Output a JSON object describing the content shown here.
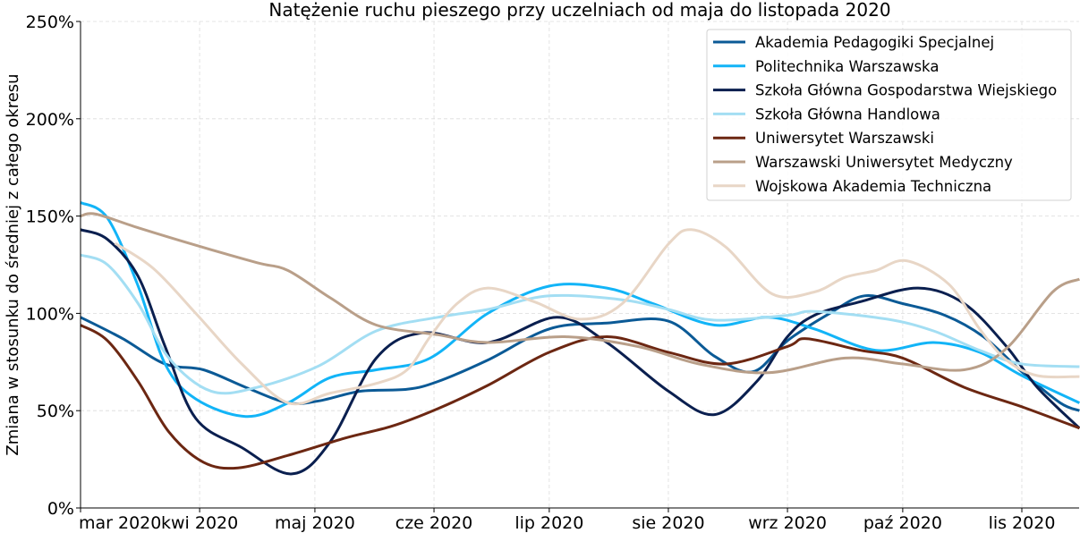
{
  "chart_data": {
    "type": "line",
    "title": "Natężenie ruchu pieszego przy uczelniach od maja do listopada 2020",
    "xlabel": "",
    "ylabel": "Zmiana w stosunku do średniej z całego okresu",
    "x_unit": "days since 2020-03-01",
    "xlim": [
      0,
      260
    ],
    "ylim": [
      0,
      250
    ],
    "grid": true,
    "legend_position": "top-right",
    "x_ticks": [
      {
        "value": 0,
        "label": "mar 2020"
      },
      {
        "value": 31,
        "label": "kwi 2020"
      },
      {
        "value": 61,
        "label": "maj 2020"
      },
      {
        "value": 92,
        "label": "cze 2020"
      },
      {
        "value": 122,
        "label": "lip 2020"
      },
      {
        "value": 153,
        "label": "sie 2020"
      },
      {
        "value": 184,
        "label": "wrz 2020"
      },
      {
        "value": 214,
        "label": "paź 2020"
      },
      {
        "value": 245,
        "label": "lis 2020"
      }
    ],
    "y_ticks": [
      {
        "value": 0,
        "label": "0%"
      },
      {
        "value": 50,
        "label": "50%"
      },
      {
        "value": 100,
        "label": "100%"
      },
      {
        "value": 150,
        "label": "150%"
      },
      {
        "value": 200,
        "label": "200%"
      },
      {
        "value": 250,
        "label": "250%"
      }
    ],
    "series": [
      {
        "name": "Akademia Pedagogiki Specjalnej",
        "color": "#0b5a96",
        "x": [
          0,
          11,
          22,
          32,
          43,
          54,
          62,
          73,
          85,
          93,
          106,
          122,
          137,
          153,
          165,
          175,
          184,
          195,
          204,
          214,
          225,
          235,
          245,
          255,
          260
        ],
        "y": [
          98,
          87,
          74,
          71,
          62,
          54,
          55,
          60,
          61,
          65,
          76,
          92,
          95,
          96,
          78,
          70,
          86,
          100,
          109,
          105,
          99,
          88,
          70,
          54,
          50
        ]
      },
      {
        "name": "Politechnika Warszawska",
        "color": "#12b4f7",
        "x": [
          0,
          7,
          15,
          22,
          30,
          43,
          54,
          65,
          77,
          91,
          106,
          122,
          137,
          149,
          165,
          179,
          191,
          207,
          222,
          234,
          245,
          260
        ],
        "y": [
          157,
          149,
          114,
          74,
          56,
          47,
          54,
          67,
          71,
          77,
          100,
          114,
          113,
          105,
          94,
          98,
          92,
          81,
          85,
          80,
          68,
          54
        ]
      },
      {
        "name": "Szkoła Główna Gospodarstwa Wiejskiego",
        "color": "#0a1f4f",
        "x": [
          0,
          7,
          15,
          22,
          30,
          42,
          55,
          65,
          77,
          89,
          106,
          124,
          137,
          153,
          165,
          176,
          184,
          191,
          203,
          218,
          230,
          241,
          249,
          260
        ],
        "y": [
          143,
          138,
          119,
          83,
          46,
          31,
          17.5,
          34,
          77,
          90,
          85,
          98,
          85,
          60,
          48,
          65,
          88,
          99,
          106,
          113,
          105,
          83,
          62,
          41
        ]
      },
      {
        "name": "Szkoła Główna Handlowa",
        "color": "#a3def3",
        "x": [
          0,
          7,
          15,
          23,
          34,
          46,
          62,
          77,
          93,
          106,
          122,
          141,
          153,
          165,
          184,
          191,
          210,
          222,
          234,
          245,
          260
        ],
        "y": [
          130,
          125,
          105,
          77,
          60,
          62,
          73,
          91,
          98,
          102,
          109,
          107,
          102,
          96.5,
          99,
          101,
          97,
          91,
          81,
          74,
          72.6
        ]
      },
      {
        "name": "Uniwersytet Warszawski",
        "color": "#6c2712",
        "x": [
          0,
          7,
          15,
          23,
          32,
          41,
          54,
          69,
          81,
          93,
          106,
          122,
          137,
          153,
          168,
          184,
          189,
          203,
          214,
          230,
          245,
          260
        ],
        "y": [
          94,
          86,
          65,
          39,
          23.5,
          20.6,
          27,
          36,
          42,
          51,
          63,
          80,
          88,
          80,
          74,
          83,
          87,
          81,
          77,
          62,
          52,
          41
        ]
      },
      {
        "name": "Warszawski Uniwersytet Medyczny",
        "color": "#b99f89",
        "x": [
          0,
          4,
          15,
          30,
          46,
          54,
          65,
          77,
          93,
          106,
          126,
          145,
          161,
          179,
          199,
          214,
          230,
          241,
          253,
          260
        ],
        "y": [
          150,
          151,
          144,
          135,
          126,
          122,
          108,
          94,
          89,
          85,
          88,
          83,
          74,
          69.5,
          77,
          74,
          71,
          82,
          111,
          117.6
        ]
      },
      {
        "name": "Wojskowa Akademia Techniczna",
        "color": "#e8d6c6",
        "x": [
          9,
          19,
          30,
          42,
          54,
          65,
          77,
          85,
          91,
          98,
          106,
          118,
          130,
          141,
          153,
          159,
          168,
          180,
          191,
          199,
          207,
          215,
          226,
          234,
          241,
          249,
          260
        ],
        "y": [
          136,
          123,
          100,
          74,
          54,
          59,
          64,
          71,
          88,
          105,
          113,
          106,
          97,
          105,
          135.6,
          143,
          134,
          110,
          111,
          118.5,
          122,
          127,
          115,
          92,
          76,
          68,
          67.5
        ]
      }
    ]
  }
}
